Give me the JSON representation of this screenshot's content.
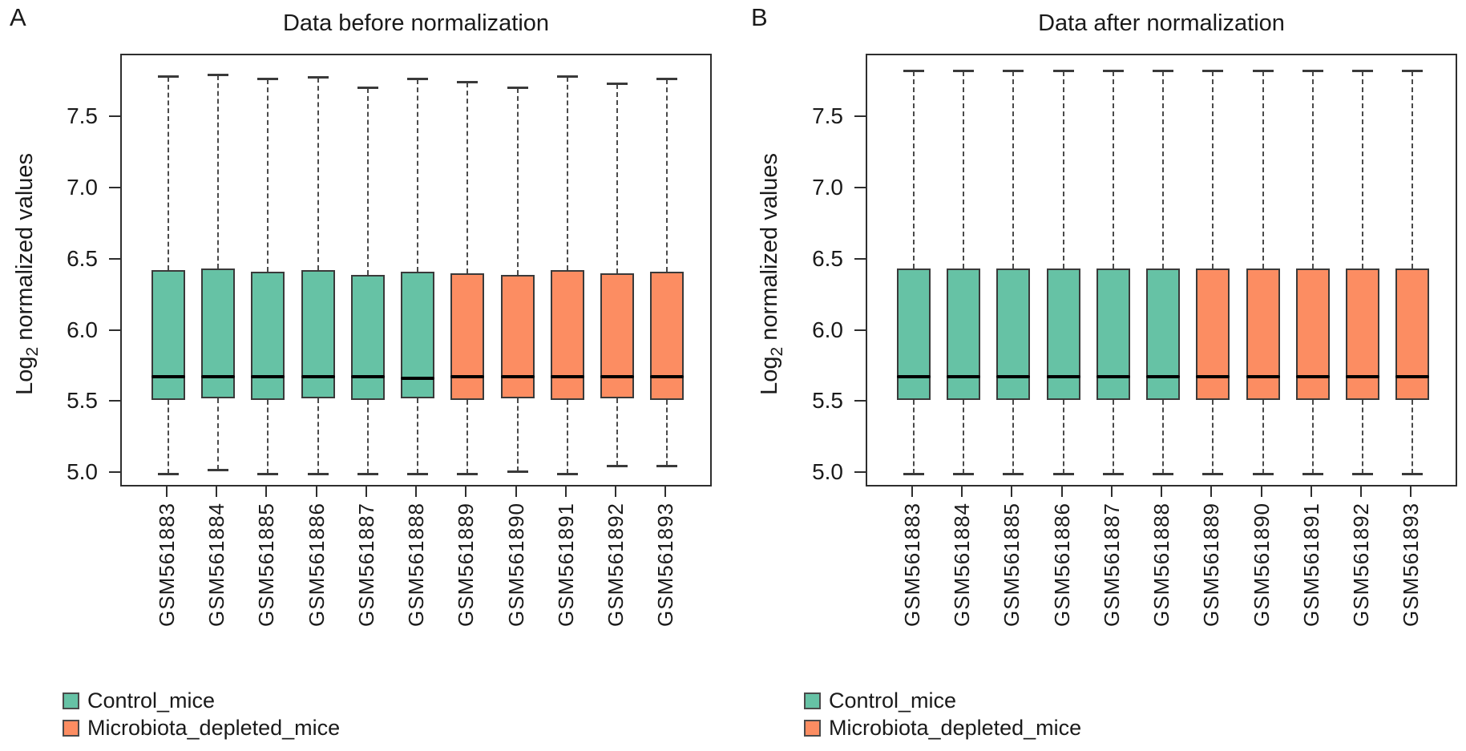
{
  "chart_data": [
    {
      "type": "boxplot",
      "panel_label": "A",
      "title": "Data before normalization",
      "ylabel": "Log2 normalized values",
      "ylabel_parts": {
        "base": "Log",
        "sub": "2",
        "rest": " normalized values"
      },
      "ylim": [
        4.9,
        7.94
      ],
      "yticks": [
        7.5,
        7.0,
        6.5,
        6.0,
        5.5,
        5.0
      ],
      "ytick_labels": [
        "7.5",
        "7.0",
        "6.5",
        "6.0",
        "5.5",
        "5.0"
      ],
      "grid": false,
      "legend_position": "bottom-left",
      "categories": [
        "GSM561883",
        "GSM561884",
        "GSM561885",
        "GSM561886",
        "GSM561887",
        "GSM561888",
        "GSM561889",
        "GSM561890",
        "GSM561891",
        "GSM561892",
        "GSM561893"
      ],
      "series": [
        {
          "name": "GSM561883",
          "group": "Control_mice",
          "whisker_low": 5.0,
          "q1": 5.52,
          "median": 5.68,
          "q3": 6.43,
          "whisker_high": 7.79
        },
        {
          "name": "GSM561884",
          "group": "Control_mice",
          "whisker_low": 5.03,
          "q1": 5.53,
          "median": 5.68,
          "q3": 6.44,
          "whisker_high": 7.8
        },
        {
          "name": "GSM561885",
          "group": "Control_mice",
          "whisker_low": 5.0,
          "q1": 5.52,
          "median": 5.68,
          "q3": 6.42,
          "whisker_high": 7.77
        },
        {
          "name": "GSM561886",
          "group": "Control_mice",
          "whisker_low": 5.0,
          "q1": 5.53,
          "median": 5.68,
          "q3": 6.43,
          "whisker_high": 7.78
        },
        {
          "name": "GSM561887",
          "group": "Control_mice",
          "whisker_low": 5.0,
          "q1": 5.52,
          "median": 5.68,
          "q3": 6.4,
          "whisker_high": 7.71
        },
        {
          "name": "GSM561888",
          "group": "Control_mice",
          "whisker_low": 5.0,
          "q1": 5.53,
          "median": 5.67,
          "q3": 6.42,
          "whisker_high": 7.77
        },
        {
          "name": "GSM561889",
          "group": "Microbiota_depleted_mice",
          "whisker_low": 5.0,
          "q1": 5.52,
          "median": 5.68,
          "q3": 6.41,
          "whisker_high": 7.75
        },
        {
          "name": "GSM561890",
          "group": "Microbiota_depleted_mice",
          "whisker_low": 5.02,
          "q1": 5.53,
          "median": 5.68,
          "q3": 6.4,
          "whisker_high": 7.71
        },
        {
          "name": "GSM561891",
          "group": "Microbiota_depleted_mice",
          "whisker_low": 5.0,
          "q1": 5.52,
          "median": 5.68,
          "q3": 6.43,
          "whisker_high": 7.79
        },
        {
          "name": "GSM561892",
          "group": "Microbiota_depleted_mice",
          "whisker_low": 5.06,
          "q1": 5.53,
          "median": 5.68,
          "q3": 6.41,
          "whisker_high": 7.74
        },
        {
          "name": "GSM561893",
          "group": "Microbiota_depleted_mice",
          "whisker_low": 5.06,
          "q1": 5.52,
          "median": 5.68,
          "q3": 6.42,
          "whisker_high": 7.77
        }
      ],
      "legend": [
        {
          "label": "Control_mice",
          "color": "#66C2A5"
        },
        {
          "label": "Microbiota_depleted_mice",
          "color": "#FC8D62"
        }
      ]
    },
    {
      "type": "boxplot",
      "panel_label": "B",
      "title": "Data after normalization",
      "ylabel": "Log2 normalized values",
      "ylabel_parts": {
        "base": "Log",
        "sub": "2",
        "rest": " normalized values"
      },
      "ylim": [
        4.9,
        7.94
      ],
      "yticks": [
        7.5,
        7.0,
        6.5,
        6.0,
        5.5,
        5.0
      ],
      "ytick_labels": [
        "7.5",
        "7.0",
        "6.5",
        "6.0",
        "5.5",
        "5.0"
      ],
      "grid": false,
      "legend_position": "bottom-left",
      "categories": [
        "GSM561883",
        "GSM561884",
        "GSM561885",
        "GSM561886",
        "GSM561887",
        "GSM561888",
        "GSM561889",
        "GSM561890",
        "GSM561891",
        "GSM561892",
        "GSM561893"
      ],
      "series": [
        {
          "name": "GSM561883",
          "group": "Control_mice",
          "whisker_low": 5.0,
          "q1": 5.52,
          "median": 5.68,
          "q3": 6.44,
          "whisker_high": 7.83
        },
        {
          "name": "GSM561884",
          "group": "Control_mice",
          "whisker_low": 5.0,
          "q1": 5.52,
          "median": 5.68,
          "q3": 6.44,
          "whisker_high": 7.83
        },
        {
          "name": "GSM561885",
          "group": "Control_mice",
          "whisker_low": 5.0,
          "q1": 5.52,
          "median": 5.68,
          "q3": 6.44,
          "whisker_high": 7.83
        },
        {
          "name": "GSM561886",
          "group": "Control_mice",
          "whisker_low": 5.0,
          "q1": 5.52,
          "median": 5.68,
          "q3": 6.44,
          "whisker_high": 7.83
        },
        {
          "name": "GSM561887",
          "group": "Control_mice",
          "whisker_low": 5.0,
          "q1": 5.52,
          "median": 5.68,
          "q3": 6.44,
          "whisker_high": 7.83
        },
        {
          "name": "GSM561888",
          "group": "Control_mice",
          "whisker_low": 5.0,
          "q1": 5.52,
          "median": 5.68,
          "q3": 6.44,
          "whisker_high": 7.83
        },
        {
          "name": "GSM561889",
          "group": "Microbiota_depleted_mice",
          "whisker_low": 5.0,
          "q1": 5.52,
          "median": 5.68,
          "q3": 6.44,
          "whisker_high": 7.83
        },
        {
          "name": "GSM561890",
          "group": "Microbiota_depleted_mice",
          "whisker_low": 5.0,
          "q1": 5.52,
          "median": 5.68,
          "q3": 6.44,
          "whisker_high": 7.83
        },
        {
          "name": "GSM561891",
          "group": "Microbiota_depleted_mice",
          "whisker_low": 5.0,
          "q1": 5.52,
          "median": 5.68,
          "q3": 6.44,
          "whisker_high": 7.83
        },
        {
          "name": "GSM561892",
          "group": "Microbiota_depleted_mice",
          "whisker_low": 5.0,
          "q1": 5.52,
          "median": 5.68,
          "q3": 6.44,
          "whisker_high": 7.83
        },
        {
          "name": "GSM561893",
          "group": "Microbiota_depleted_mice",
          "whisker_low": 5.0,
          "q1": 5.52,
          "median": 5.68,
          "q3": 6.44,
          "whisker_high": 7.83
        }
      ],
      "legend": [
        {
          "label": "Control_mice",
          "color": "#66C2A5"
        },
        {
          "label": "Microbiota_depleted_mice",
          "color": "#FC8D62"
        }
      ]
    }
  ]
}
